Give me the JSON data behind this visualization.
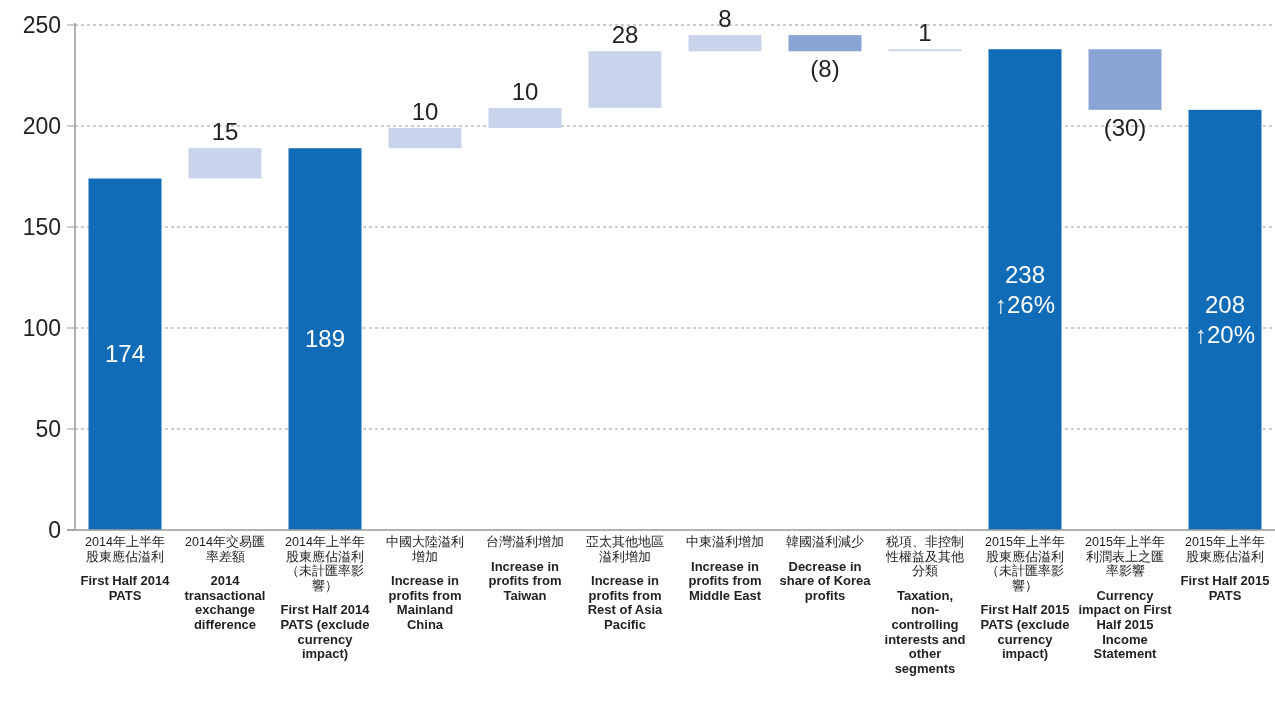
{
  "chart_data": {
    "type": "bar",
    "categories": [
      "2014年上半年股東應佔溢利First Half 2014 PATS",
      "2014年交易匯率差額2014 transactional exchange difference",
      "2014年上半年股東應佔溢利（未計匯率影響）First Half 2014 PATS (exclude currency impact)",
      "中國大陸溢利增加Increase in profits from Mainland China",
      "台灣溢利增加Increase in profits from Taiwan",
      "亞太其他地區溢利增加Increase in profits from Rest of Asia Pacific",
      "中東溢利增加Increase in profits from Middle East",
      "韓國溢利減少Decrease in share of Korea profits",
      "税項、非控制性權益及其他分類Taxation, non-controlling interests and other segments",
      "2015年上半年股東應佔溢利（未計匯率影響）First Half 2015 PATS (exclude currency impact)",
      "2015年上半年利潤表上之匯率影響Currency impact on First Half 2015 Income Statement",
      "2015年上半年股東應佔溢利First Half 2015 PATS"
    ],
    "values": [
      174,
      15,
      189,
      10,
      10,
      28,
      8,
      -8,
      1,
      238,
      -30,
      208
    ],
    "base": [
      0,
      174,
      0,
      189,
      199,
      209,
      237,
      245,
      237,
      0,
      238,
      0
    ],
    "colors": [
      "#106cb6",
      "#c9d3eb",
      "#106cb6",
      "#c9d3eb",
      "#c9d3eb",
      "#c9d3eb",
      "#c9d3eb",
      "#8aa4d3",
      "#c9d3eb",
      "#106cb6",
      "#8aa4d3",
      "#106cb6"
    ],
    "value_labels": [
      "174",
      "15",
      "189",
      "10",
      "10",
      "28",
      "8",
      "(8)",
      "1",
      "238\n↑26%",
      "(30)",
      "208\n↑20%"
    ],
    "ylim": [
      0,
      250
    ],
    "yticks": [
      0,
      50,
      100,
      150,
      200,
      250
    ],
    "grid": "y"
  }
}
